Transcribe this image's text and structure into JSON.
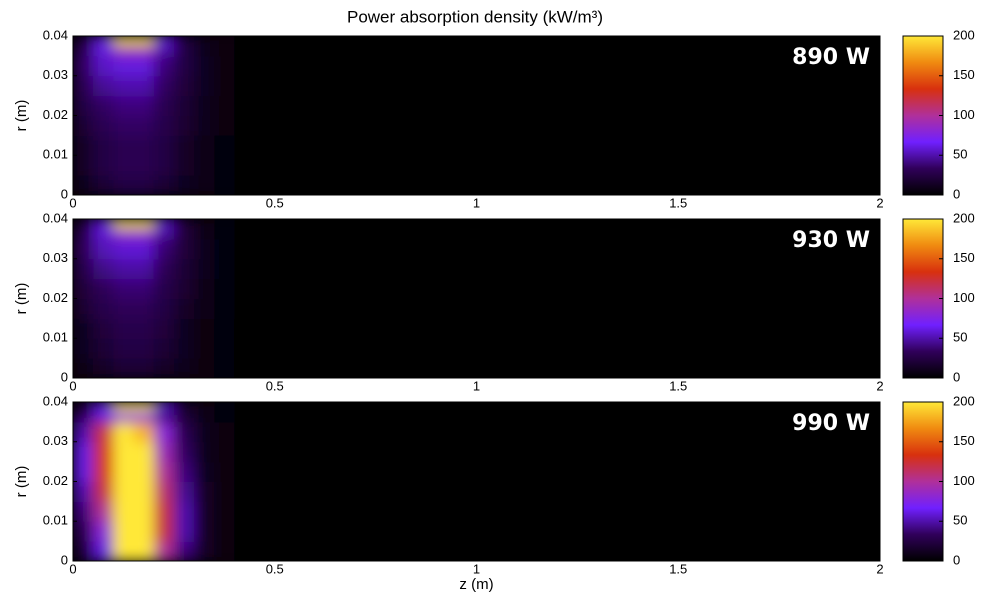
{
  "chart_data": [
    {
      "type": "heatmap",
      "title": "Power absorption density (kW/m³)",
      "ylabel": "r (m)",
      "annotation": "890 W",
      "xbins": [
        0,
        0.05,
        0.1,
        0.15,
        0.2,
        0.25,
        0.3,
        0.35,
        0.4,
        2
      ],
      "ybins": [
        0,
        0.005,
        0.01,
        0.015,
        0.02,
        0.025,
        0.03,
        0.035,
        0.038,
        0.04
      ],
      "values": [
        [
          10,
          20,
          25,
          25,
          20,
          12,
          8,
          4,
          0
        ],
        [
          15,
          25,
          30,
          30,
          25,
          15,
          8,
          4,
          0
        ],
        [
          15,
          25,
          30,
          30,
          25,
          15,
          8,
          4,
          0
        ],
        [
          20,
          30,
          35,
          35,
          28,
          18,
          10,
          5,
          0
        ],
        [
          25,
          35,
          40,
          40,
          30,
          20,
          10,
          5,
          0
        ],
        [
          30,
          45,
          50,
          50,
          35,
          22,
          12,
          5,
          0
        ],
        [
          35,
          55,
          60,
          60,
          40,
          25,
          12,
          5,
          0
        ],
        [
          30,
          60,
          90,
          90,
          50,
          25,
          10,
          5,
          0
        ],
        [
          20,
          60,
          200,
          200,
          60,
          25,
          10,
          5,
          0
        ]
      ],
      "xlim": [
        0,
        2
      ],
      "xticks": [
        0,
        0.5,
        1,
        1.5,
        2
      ],
      "ylim": [
        0,
        0.04
      ],
      "yticks": [
        0,
        0.01,
        0.02,
        0.03,
        0.04
      ],
      "clim": [
        0,
        200
      ],
      "cticks": [
        0,
        50,
        100,
        150,
        200
      ],
      "colormap": [
        "#000000",
        "#30005a",
        "#7020ff",
        "#b0309a",
        "#d8300e",
        "#f08a10",
        "#ffe838"
      ]
    },
    {
      "type": "heatmap",
      "ylabel": "r (m)",
      "annotation": "930 W",
      "xbins": [
        0,
        0.05,
        0.1,
        0.15,
        0.2,
        0.25,
        0.3,
        0.35,
        0.4,
        2
      ],
      "ybins": [
        0,
        0.005,
        0.01,
        0.015,
        0.02,
        0.025,
        0.03,
        0.035,
        0.038,
        0.04
      ],
      "values": [
        [
          8,
          15,
          20,
          20,
          15,
          10,
          6,
          3,
          0
        ],
        [
          12,
          20,
          25,
          25,
          20,
          12,
          6,
          3,
          0
        ],
        [
          12,
          22,
          28,
          28,
          22,
          12,
          6,
          3,
          0
        ],
        [
          18,
          28,
          32,
          32,
          25,
          15,
          8,
          4,
          0
        ],
        [
          22,
          32,
          38,
          38,
          28,
          18,
          8,
          4,
          0
        ],
        [
          28,
          42,
          48,
          48,
          32,
          20,
          10,
          4,
          0
        ],
        [
          32,
          52,
          58,
          58,
          38,
          22,
          10,
          4,
          0
        ],
        [
          28,
          58,
          85,
          85,
          48,
          22,
          8,
          4,
          0
        ],
        [
          18,
          58,
          200,
          200,
          58,
          22,
          8,
          4,
          0
        ]
      ],
      "xlim": [
        0,
        2
      ],
      "xticks": [
        0,
        0.5,
        1,
        1.5,
        2
      ],
      "ylim": [
        0,
        0.04
      ],
      "yticks": [
        0,
        0.01,
        0.02,
        0.03,
        0.04
      ],
      "clim": [
        0,
        200
      ],
      "cticks": [
        0,
        50,
        100,
        150,
        200
      ],
      "colormap": [
        "#000000",
        "#30005a",
        "#7020ff",
        "#b0309a",
        "#d8300e",
        "#f08a10",
        "#ffe838"
      ]
    },
    {
      "type": "heatmap",
      "ylabel": "r (m)",
      "xlabel": "z (m)",
      "annotation": "990 W",
      "xbins": [
        0,
        0.05,
        0.1,
        0.15,
        0.2,
        0.25,
        0.3,
        0.35,
        0.4,
        2
      ],
      "ybins": [
        0,
        0.005,
        0.01,
        0.015,
        0.02,
        0.025,
        0.03,
        0.035,
        0.038,
        0.04
      ],
      "values": [
        [
          20,
          60,
          200,
          200,
          100,
          40,
          15,
          5,
          0
        ],
        [
          30,
          80,
          200,
          200,
          120,
          50,
          15,
          5,
          0
        ],
        [
          40,
          100,
          200,
          200,
          120,
          50,
          15,
          5,
          0
        ],
        [
          50,
          120,
          200,
          200,
          110,
          45,
          15,
          5,
          0
        ],
        [
          60,
          130,
          200,
          200,
          100,
          40,
          12,
          5,
          0
        ],
        [
          60,
          130,
          200,
          200,
          90,
          35,
          10,
          5,
          0
        ],
        [
          50,
          120,
          200,
          180,
          80,
          30,
          10,
          5,
          0
        ],
        [
          30,
          60,
          80,
          80,
          40,
          20,
          8,
          4,
          0
        ],
        [
          20,
          60,
          200,
          200,
          60,
          20,
          8,
          4,
          0
        ]
      ],
      "xlim": [
        0,
        2
      ],
      "xticks": [
        0,
        0.5,
        1,
        1.5,
        2
      ],
      "ylim": [
        0,
        0.04
      ],
      "yticks": [
        0,
        0.01,
        0.02,
        0.03,
        0.04
      ],
      "clim": [
        0,
        200
      ],
      "cticks": [
        0,
        50,
        100,
        150,
        200
      ],
      "colormap": [
        "#000000",
        "#30005a",
        "#7020ff",
        "#b0309a",
        "#d8300e",
        "#f08a10",
        "#ffe838"
      ]
    }
  ]
}
